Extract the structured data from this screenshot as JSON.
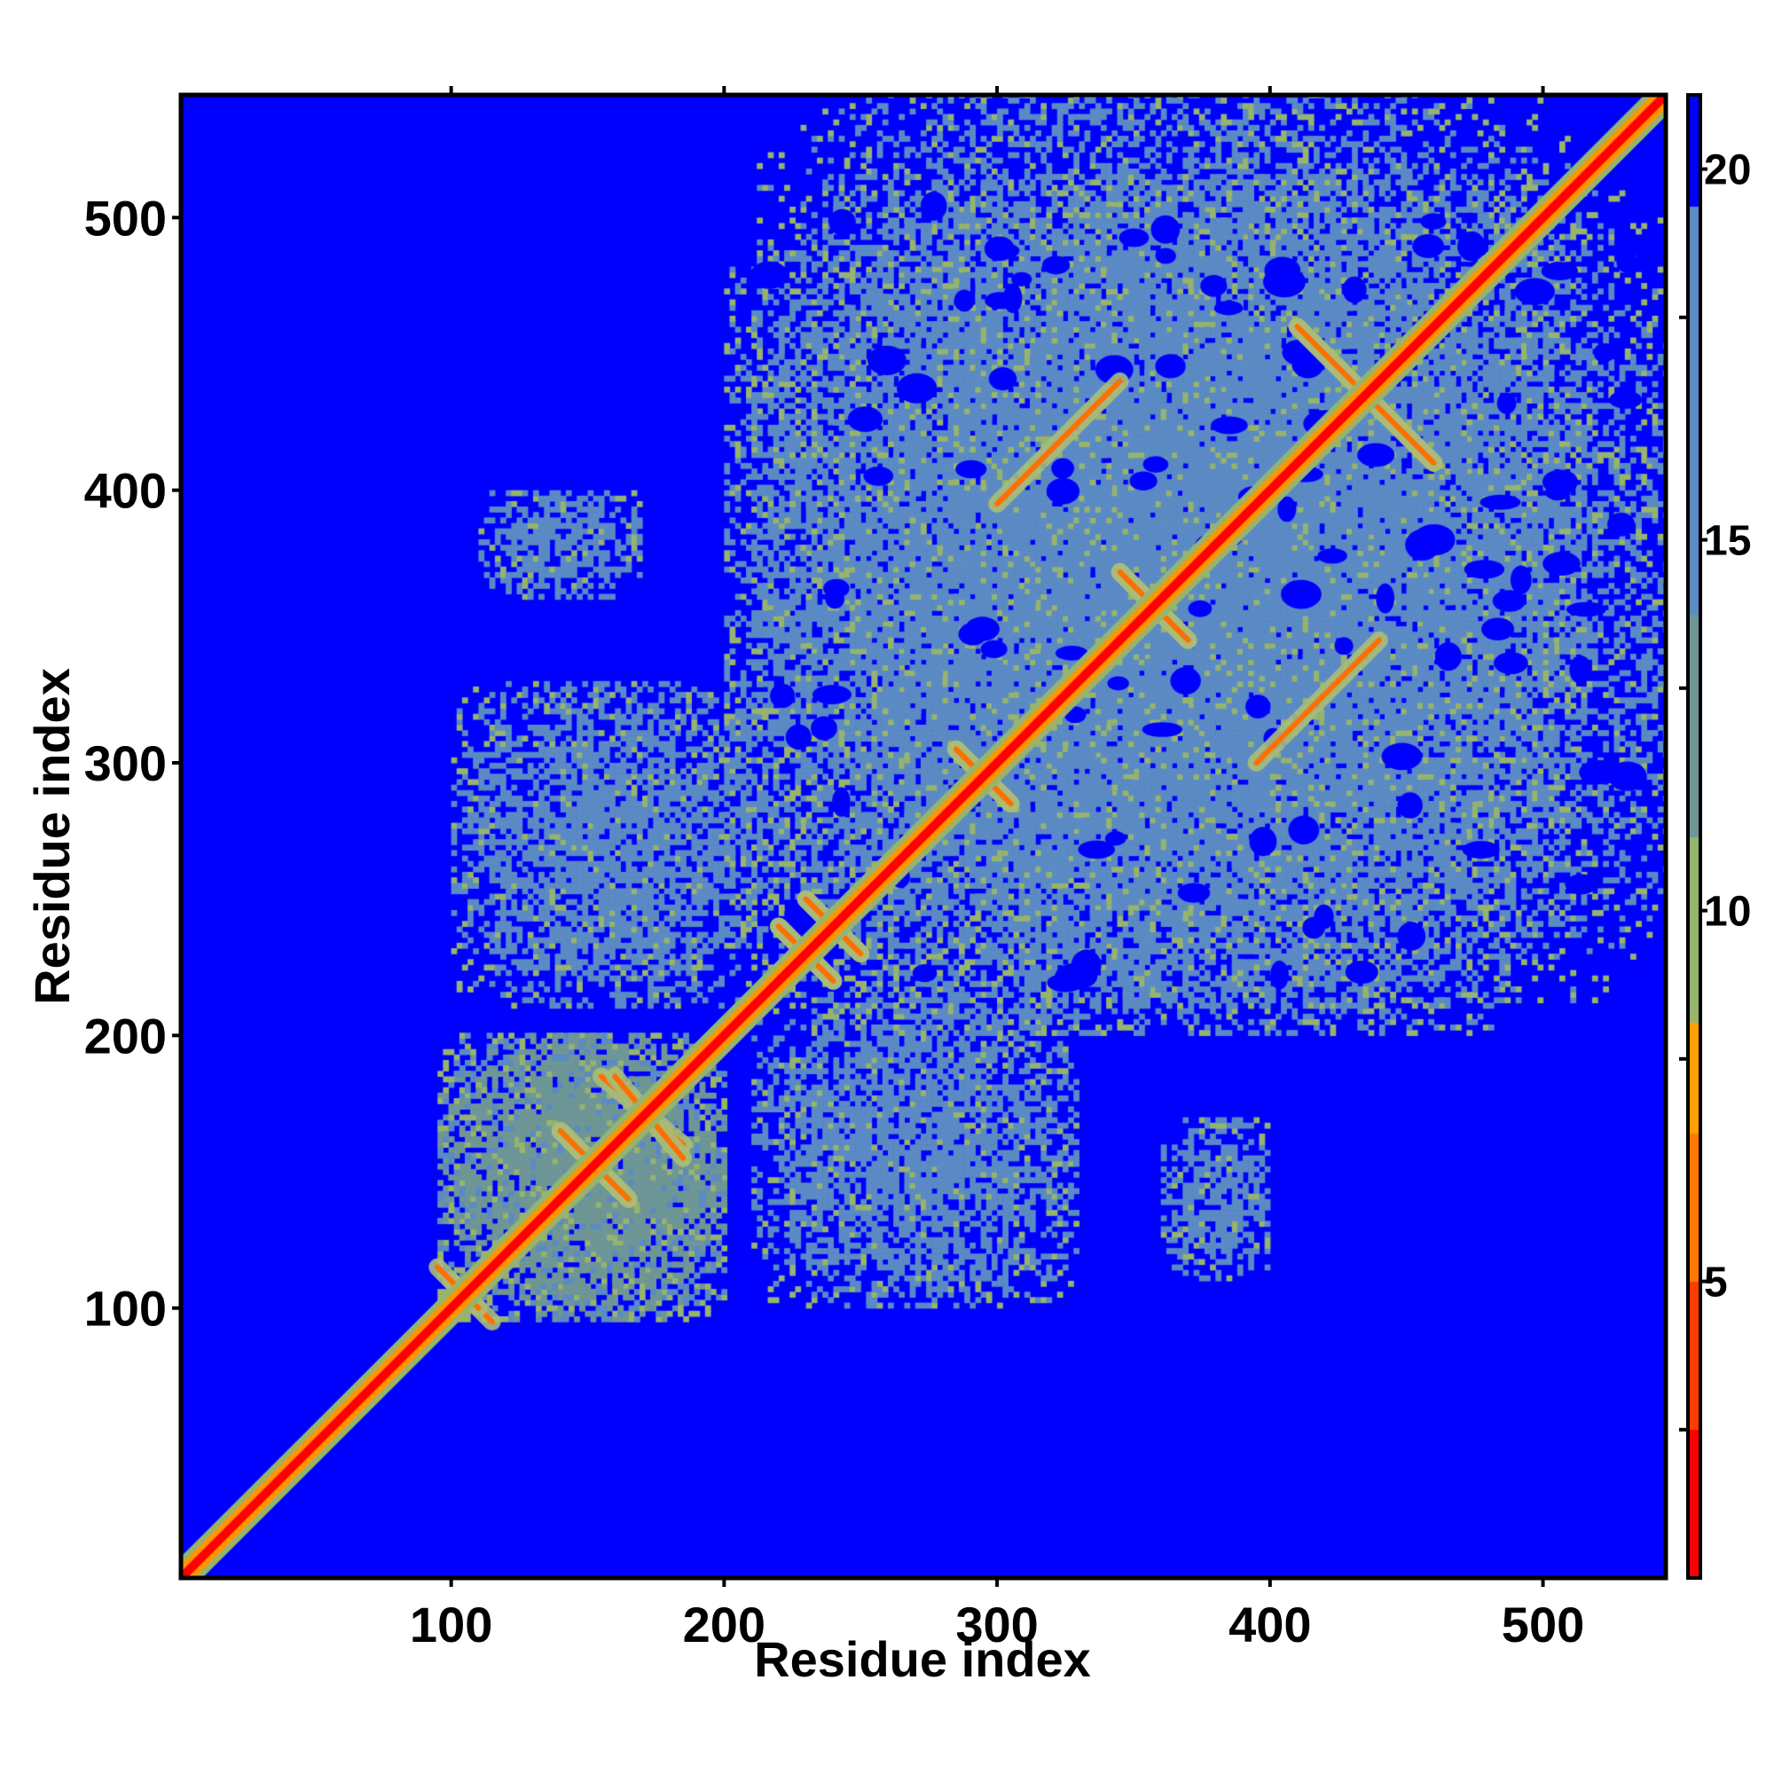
{
  "chart_data": {
    "type": "heatmap",
    "title": "",
    "xlabel": "Residue index",
    "ylabel": "Residue index",
    "xlim": [
      1,
      545
    ],
    "ylim": [
      1,
      545
    ],
    "xticks": [
      100,
      200,
      300,
      400,
      500
    ],
    "yticks": [
      100,
      200,
      300,
      400,
      500
    ],
    "colorbar": {
      "range": [
        1,
        21
      ],
      "ticks": [
        5,
        10,
        15,
        20
      ],
      "minor_ticks": [
        3,
        8,
        13,
        18
      ],
      "colors": {
        "low": "#ff0000",
        "mid": "#ff9900",
        "high": "#5b8ac4",
        "background": "#0000ff"
      }
    },
    "blocks": [
      {
        "x": [
          95,
          200
        ],
        "y": [
          95,
          200
        ],
        "level": 13
      },
      {
        "x": [
          200,
          545
        ],
        "y": [
          210,
          515
        ],
        "level": 17
      },
      {
        "x": [
          110,
          170
        ],
        "y": [
          360,
          400
        ],
        "level": 18
      },
      {
        "x": [
          210,
          330
        ],
        "y": [
          100,
          215
        ],
        "level": 18
      }
    ],
    "contact_lines": [
      {
        "from": [
          100,
          110
        ],
        "to": [
          115,
          95
        ]
      },
      {
        "from": [
          140,
          165
        ],
        "to": [
          165,
          140
        ]
      },
      {
        "from": [
          155,
          185
        ],
        "to": [
          185,
          160
        ]
      },
      {
        "from": [
          220,
          240
        ],
        "to": [
          240,
          220
        ]
      },
      {
        "from": [
          230,
          250
        ],
        "to": [
          250,
          230
        ]
      },
      {
        "from": [
          285,
          305
        ],
        "to": [
          305,
          285
        ]
      },
      {
        "from": [
          345,
          370
        ],
        "to": [
          370,
          345
        ]
      },
      {
        "from": [
          300,
          395
        ],
        "to": [
          345,
          440
        ]
      },
      {
        "from": [
          410,
          460
        ],
        "to": [
          460,
          410
        ]
      }
    ]
  }
}
